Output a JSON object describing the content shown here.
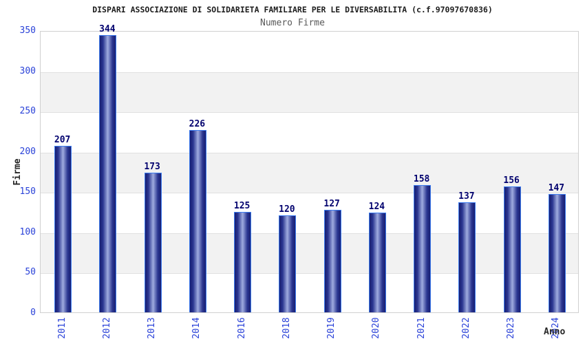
{
  "header": {
    "title": "DISPARI ASSOCIAZIONE DI SOLIDARIETA FAMILIARE PER LE DIVERSABILITA (c.f.97097670836)",
    "subtitle": "Numero Firme"
  },
  "chart_data": {
    "type": "bar",
    "title": "DISPARI ASSOCIAZIONE DI SOLIDARIETA FAMILIARE PER LE DIVERSABILITA (c.f.97097670836)",
    "subtitle": "Numero Firme",
    "categories": [
      "2011",
      "2012",
      "2013",
      "2014",
      "2016",
      "2018",
      "2019",
      "2020",
      "2021",
      "2022",
      "2023",
      "2024"
    ],
    "values": [
      207,
      344,
      173,
      226,
      125,
      120,
      127,
      124,
      158,
      137,
      156,
      147
    ],
    "xlabel": "Anno",
    "ylabel": "Firme",
    "ylim": [
      0,
      350
    ],
    "yticks": [
      0,
      50,
      100,
      150,
      200,
      250,
      300,
      350
    ],
    "grid": "alternating-horizontal-bands",
    "legend": "none",
    "colors": {
      "bar_border": "#3c7cf0",
      "bar_dark": "#181f72",
      "bar_mid": "#2a3590",
      "bar_light": "#9fabdf",
      "tick_label": "#2941d8",
      "value_label": "#00006e",
      "band_gray": "#f2f2f2",
      "grid_line": "#e0e0e0",
      "plot_border": "#d0d0d0",
      "title": "#1c1c1c",
      "subtitle": "#585858",
      "axis_label": "#262626",
      "background": "#ffffff"
    }
  }
}
